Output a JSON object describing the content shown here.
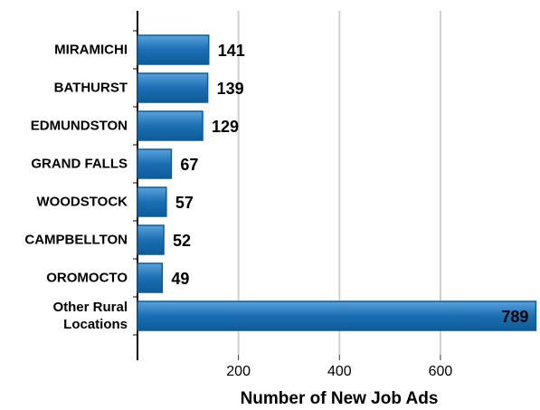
{
  "chart_data": {
    "type": "bar",
    "orientation": "horizontal",
    "categories": [
      "MIRAMICHI",
      "BATHURST",
      "EDMUNDSTON",
      "GRAND FALLS",
      "WOODSTOCK",
      "CAMPBELLTON",
      "OROMOCTO",
      "Other Rural\nLocations"
    ],
    "values": [
      141,
      139,
      129,
      67,
      57,
      52,
      49,
      789
    ],
    "color": "#1b6fb2",
    "xlabel": "Number of New Job Ads",
    "xlim": [
      0,
      790
    ],
    "xticks": [
      200,
      400,
      600
    ],
    "grid": true
  }
}
